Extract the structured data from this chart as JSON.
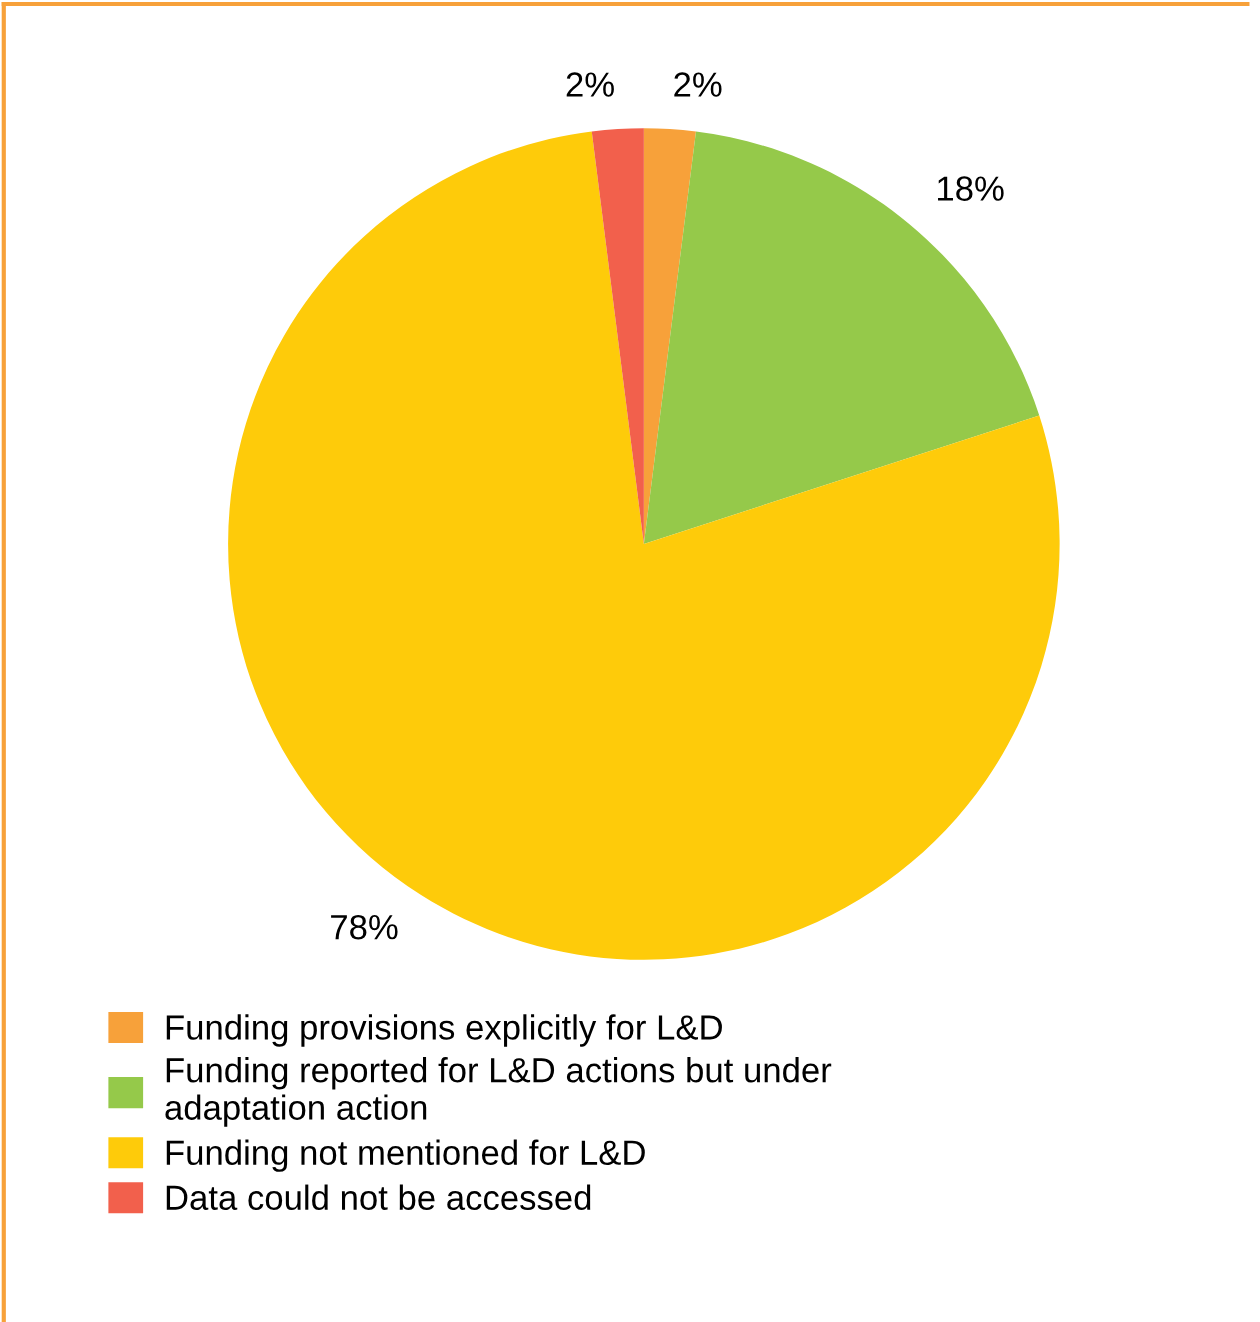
{
  "chart_data": {
    "type": "pie",
    "categories": [
      "Funding provisions explicitly for L&D",
      "Funding reported for L&D actions but under\nadaptation action",
      "Funding not mentioned for L&D",
      "Data could not be accessed"
    ],
    "values": [
      2,
      18,
      78,
      2
    ],
    "colors": [
      "#f7a13a",
      "#95c94a",
      "#fecb0a",
      "#f2604c"
    ],
    "value_labels": [
      "2%",
      "18%",
      "78%",
      "2%"
    ],
    "legend": "bottom"
  }
}
